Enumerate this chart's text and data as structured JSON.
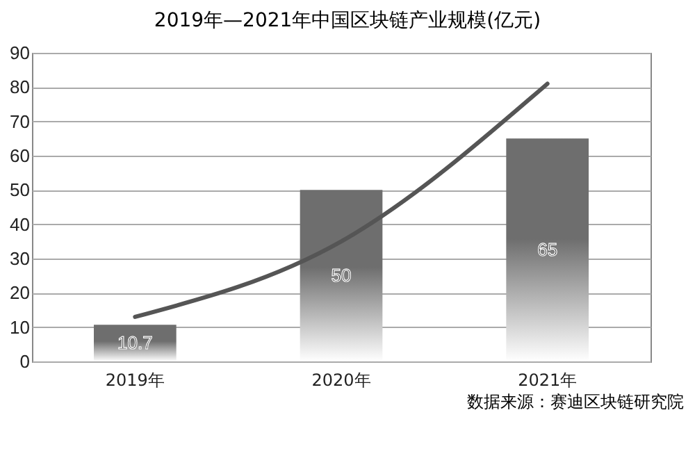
{
  "chart_data": {
    "type": "bar",
    "title": "2019年—2021年中国区块链产业规模(亿元)",
    "categories": [
      "2019年",
      "2020年",
      "2021年"
    ],
    "series": [
      {
        "color": "#6e6e6e",
        "values": [
          10.7,
          50,
          65
        ],
        "value_labels": [
          "10.7",
          "50",
          "65"
        ]
      },
      {
        "type": "line",
        "color": "#555555",
        "values": [
          13,
          35,
          81
        ]
      }
    ],
    "ylim": [
      0,
      90
    ],
    "yticks": [
      0,
      10,
      20,
      30,
      40,
      50,
      60,
      70,
      80,
      90
    ],
    "grid": "y",
    "annotations": [
      "数据来源：赛迪区块链研究院"
    ]
  }
}
